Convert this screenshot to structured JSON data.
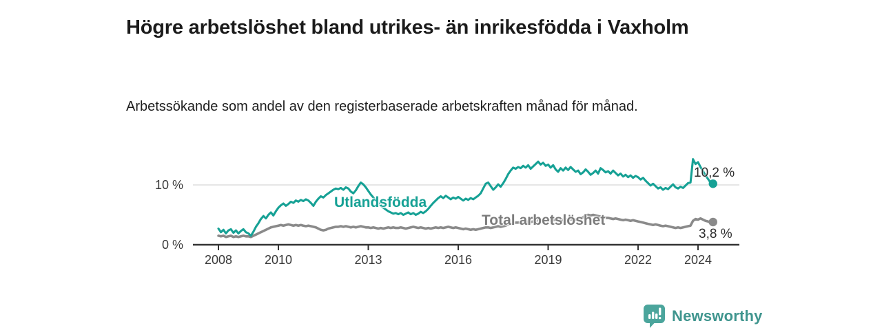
{
  "chart_data": {
    "type": "line",
    "title": "Högre arbetslöshet bland utrikes- än inrikesfödda i Vaxholm",
    "subtitle": "Arbetssökande som andel av den registerbaserade arbetskraften månad för månad.",
    "x_start_year": 2008,
    "x_points_per_year": 12,
    "x_last_point": "2024-07",
    "x_ticks": [
      {
        "value": 2008,
        "label": "2008"
      },
      {
        "value": 2010,
        "label": "2010"
      },
      {
        "value": 2013,
        "label": "2013"
      },
      {
        "value": 2016,
        "label": "2016"
      },
      {
        "value": 2019,
        "label": "2019"
      },
      {
        "value": 2022,
        "label": "2022"
      },
      {
        "value": 2024,
        "label": "2024"
      }
    ],
    "y_ticks": [
      {
        "value": 0,
        "label": "0 %"
      },
      {
        "value": 10,
        "label": "10 %"
      }
    ],
    "ylim": [
      0,
      15.5
    ],
    "grid": "single horizontal gridline at 10 %",
    "legend_position": "inline labels on lines",
    "series": [
      {
        "name": "Utlandsfödda",
        "color": "#16a195",
        "label_color": "#16a195",
        "end_value": 10.2,
        "end_label": "10,2 %",
        "values": [
          2.7,
          2.1,
          2.5,
          1.9,
          2.4,
          2.6,
          2.0,
          2.4,
          1.9,
          2.3,
          2.6,
          2.1,
          1.9,
          1.5,
          2.2,
          3.0,
          3.6,
          4.3,
          4.8,
          4.4,
          5.0,
          5.4,
          4.9,
          5.6,
          6.2,
          6.6,
          6.9,
          6.5,
          6.8,
          7.2,
          7.0,
          7.4,
          7.2,
          7.5,
          7.3,
          7.6,
          7.4,
          7.0,
          6.5,
          7.2,
          7.7,
          8.1,
          7.9,
          8.3,
          8.6,
          8.9,
          9.2,
          9.4,
          9.3,
          9.5,
          9.2,
          9.6,
          9.4,
          8.9,
          8.6,
          9.1,
          9.8,
          10.4,
          10.1,
          9.6,
          9.0,
          8.4,
          7.9,
          7.4,
          7.0,
          6.6,
          6.2,
          5.9,
          5.6,
          5.4,
          5.2,
          5.3,
          5.1,
          5.3,
          5.0,
          5.2,
          5.4,
          5.1,
          5.3,
          5.0,
          5.2,
          5.5,
          5.3,
          5.6,
          6.0,
          6.5,
          7.0,
          7.4,
          7.8,
          8.1,
          7.8,
          8.2,
          7.9,
          7.6,
          7.9,
          7.7,
          8.0,
          7.7,
          7.4,
          7.7,
          7.5,
          7.8,
          7.6,
          7.9,
          8.2,
          8.6,
          9.4,
          10.2,
          10.4,
          9.8,
          9.2,
          9.6,
          10.1,
          9.7,
          10.3,
          11.0,
          11.8,
          12.4,
          12.9,
          12.7,
          13.0,
          12.8,
          13.2,
          12.9,
          13.3,
          12.7,
          13.1,
          13.5,
          13.9,
          13.4,
          13.7,
          13.2,
          13.4,
          12.9,
          13.3,
          12.6,
          12.2,
          12.8,
          12.4,
          12.9,
          12.5,
          13.0,
          12.6,
          12.2,
          12.4,
          11.8,
          12.1,
          12.6,
          12.2,
          11.7,
          12.0,
          12.4,
          11.9,
          12.8,
          12.5,
          12.1,
          12.3,
          11.9,
          12.4,
          12.0,
          11.6,
          11.9,
          11.4,
          11.7,
          11.3,
          11.6,
          11.2,
          11.5,
          11.3,
          10.9,
          11.2,
          10.7,
          10.3,
          9.9,
          10.2,
          9.8,
          9.4,
          9.6,
          9.2,
          9.5,
          9.3,
          9.7,
          10.1,
          9.6,
          9.4,
          9.7,
          9.5,
          9.9,
          10.3,
          10.4,
          14.3,
          13.5,
          13.8,
          13.0,
          12.3,
          11.6,
          11.0,
          10.4,
          10.2
        ]
      },
      {
        "name": "Total arbetslöshet",
        "color": "#8a8a8a",
        "label_color": "#7c7c7c",
        "end_value": 3.8,
        "end_label": "3,8 %",
        "values": [
          1.5,
          1.4,
          1.5,
          1.3,
          1.4,
          1.5,
          1.3,
          1.4,
          1.3,
          1.4,
          1.5,
          1.4,
          1.4,
          1.3,
          1.5,
          1.7,
          1.9,
          2.1,
          2.3,
          2.5,
          2.7,
          2.9,
          3.0,
          3.1,
          3.2,
          3.3,
          3.2,
          3.3,
          3.4,
          3.3,
          3.2,
          3.3,
          3.2,
          3.3,
          3.2,
          3.1,
          3.2,
          3.1,
          3.0,
          2.9,
          2.7,
          2.5,
          2.4,
          2.5,
          2.7,
          2.8,
          2.9,
          3.0,
          3.0,
          3.1,
          3.0,
          3.1,
          3.0,
          2.9,
          3.0,
          2.9,
          3.0,
          3.1,
          3.0,
          2.9,
          2.9,
          2.8,
          2.9,
          2.8,
          2.7,
          2.8,
          2.7,
          2.8,
          2.9,
          2.8,
          2.9,
          2.8,
          2.8,
          2.9,
          2.8,
          2.7,
          2.8,
          2.9,
          3.0,
          2.9,
          2.8,
          2.9,
          2.8,
          2.7,
          2.8,
          2.7,
          2.8,
          2.9,
          2.8,
          2.9,
          2.8,
          2.9,
          3.0,
          2.9,
          2.8,
          2.9,
          2.8,
          2.7,
          2.6,
          2.7,
          2.6,
          2.5,
          2.6,
          2.5,
          2.6,
          2.7,
          2.8,
          2.9,
          2.9,
          2.8,
          2.9,
          3.0,
          3.1,
          3.0,
          3.1,
          3.2,
          3.4,
          3.5,
          3.6,
          3.7,
          3.7,
          3.8,
          3.7,
          3.8,
          3.9,
          3.8,
          3.9,
          4.0,
          4.1,
          4.0,
          4.1,
          4.0,
          4.1,
          4.0,
          4.1,
          4.2,
          4.1,
          4.2,
          4.1,
          4.2,
          4.3,
          4.2,
          4.3,
          4.2,
          4.3,
          4.4,
          4.6,
          4.9,
          5.0,
          4.9,
          5.0,
          4.9,
          4.8,
          4.7,
          4.6,
          4.5,
          4.5,
          4.4,
          4.3,
          4.4,
          4.3,
          4.2,
          4.1,
          4.2,
          4.1,
          4.0,
          4.1,
          4.0,
          3.9,
          3.8,
          3.7,
          3.6,
          3.5,
          3.4,
          3.3,
          3.4,
          3.3,
          3.2,
          3.1,
          3.2,
          3.1,
          3.0,
          2.9,
          2.8,
          2.9,
          2.8,
          2.9,
          3.0,
          3.1,
          3.2,
          4.0,
          4.3,
          4.2,
          4.4,
          4.2,
          4.0,
          3.9,
          3.7,
          3.8
        ]
      }
    ]
  },
  "branding": {
    "name": "Newsworthy",
    "icon": "bar-chart-speech-bubble-icon",
    "text_color": "#3f958e",
    "icon_color": "#4ba59c"
  }
}
